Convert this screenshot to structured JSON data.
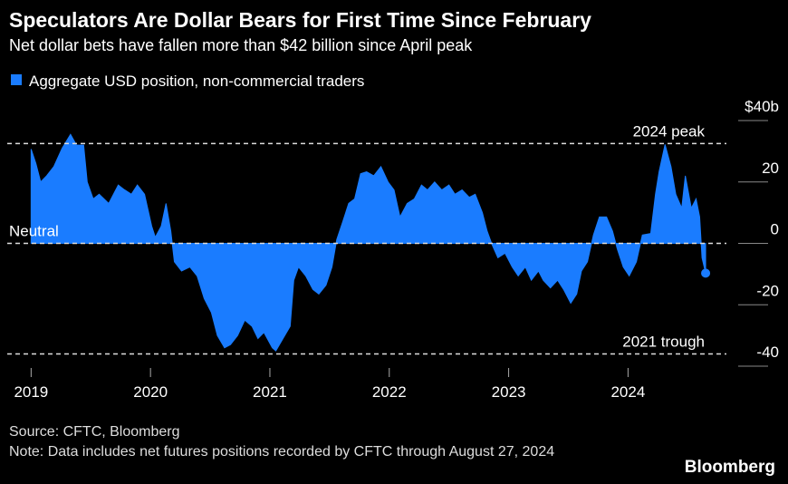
{
  "chart_data": {
    "type": "area",
    "title": "Speculators Are Dollar Bears for First Time Since February",
    "subtitle": "Net dollar bets have fallen more than $42 billion since April peak",
    "source": "Source: CFTC, Bloomberg",
    "note": "Note: Data includes net futures positions recorded by CFTC through August 27, 2024",
    "credit": "Bloomberg",
    "xlim": [
      2018.8,
      2024.9
    ],
    "xticks": [
      2019,
      2020,
      2021,
      2022,
      2023,
      2024
    ],
    "ylim": [
      -40,
      40
    ],
    "yticks": [
      {
        "value": 40,
        "label": "$40b"
      },
      20,
      0,
      -20,
      -40
    ],
    "annotations": [
      {
        "text": "2024 peak",
        "y": 32.5
      },
      {
        "text": "Neutral",
        "y": 0
      },
      {
        "text": "2021 trough",
        "y": -36
      }
    ],
    "series": [
      {
        "name": "Aggregate USD position, non-commercial traders",
        "color": "#1a7cff",
        "x": [
          2019.0,
          2019.04,
          2019.08,
          2019.13,
          2019.19,
          2019.26,
          2019.33,
          2019.38,
          2019.44,
          2019.47,
          2019.52,
          2019.57,
          2019.65,
          2019.73,
          2019.78,
          2019.84,
          2019.89,
          2019.95,
          2020.01,
          2020.04,
          2020.09,
          2020.13,
          2020.17,
          2020.2,
          2020.26,
          2020.33,
          2020.39,
          2020.45,
          2020.51,
          2020.56,
          2020.62,
          2020.67,
          2020.73,
          2020.79,
          2020.85,
          2020.9,
          2020.95,
          2021.02,
          2021.05,
          2021.11,
          2021.17,
          2021.2,
          2021.24,
          2021.3,
          2021.36,
          2021.41,
          2021.47,
          2021.52,
          2021.56,
          2021.61,
          2021.66,
          2021.71,
          2021.76,
          2021.81,
          2021.87,
          2021.93,
          2021.99,
          2022.04,
          2022.09,
          2022.15,
          2022.21,
          2022.27,
          2022.32,
          2022.38,
          2022.44,
          2022.5,
          2022.55,
          2022.61,
          2022.67,
          2022.72,
          2022.78,
          2022.82,
          2022.86,
          2022.91,
          2022.97,
          2023.03,
          2023.08,
          2023.14,
          2023.19,
          2023.25,
          2023.29,
          2023.35,
          2023.41,
          2023.46,
          2023.52,
          2023.57,
          2023.61,
          2023.66,
          2023.71,
          2023.76,
          2023.82,
          2023.87,
          2023.91,
          2023.96,
          2024.01,
          2024.07,
          2024.12,
          2024.19,
          2024.23,
          2024.26,
          2024.31,
          2024.36,
          2024.4,
          2024.45,
          2024.48,
          2024.53,
          2024.57,
          2024.6,
          2024.62,
          2024.65
        ],
        "values": [
          30.7,
          26,
          20,
          22,
          25,
          31,
          35.5,
          32,
          32,
          20,
          14.5,
          16,
          13,
          19,
          17.5,
          16,
          19,
          16,
          5.6,
          2,
          5.6,
          13,
          4,
          -6,
          -9,
          -7.7,
          -10.6,
          -18,
          -22.5,
          -30,
          -34,
          -33,
          -30,
          -25,
          -27,
          -31,
          -29,
          -34,
          -35,
          -31,
          -27,
          -12,
          -7.7,
          -10.6,
          -15,
          -16.5,
          -13.6,
          -7.7,
          1.2,
          7,
          13,
          14.5,
          22.7,
          23.3,
          22,
          25,
          20,
          17.4,
          8.6,
          13,
          14.5,
          19,
          17.4,
          20,
          17.4,
          19,
          16,
          17.4,
          15,
          16,
          10,
          4,
          -0.3,
          -4.7,
          -3.2,
          -7.7,
          -10.6,
          -7.7,
          -12,
          -9,
          -12,
          -14.5,
          -12,
          -15,
          -19.5,
          -16.5,
          -9,
          -6,
          2.7,
          8.6,
          8.6,
          4,
          -1.8,
          -7.7,
          -10.6,
          -6,
          2.7,
          3.2,
          16,
          23.3,
          32.2,
          25,
          16,
          11.5,
          22,
          11.5,
          14.5,
          8.6,
          -4.7,
          -9.7
        ]
      }
    ]
  }
}
